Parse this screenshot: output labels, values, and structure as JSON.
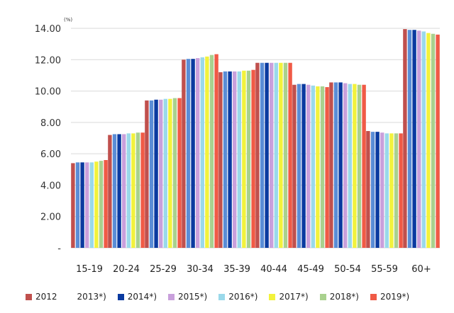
{
  "chart_data": {
    "type": "bar",
    "unit_label": "(%)",
    "categories": [
      "15-19",
      "20-24",
      "25-29",
      "30-34",
      "35-39",
      "40-44",
      "45-49",
      "50-54",
      "55-59",
      "60+"
    ],
    "y_ticks": [
      "-",
      "2.00",
      "4.00",
      "6.00",
      "8.00",
      "10.00",
      "12.00",
      "14.00"
    ],
    "ylim": [
      0,
      14
    ],
    "grid": true,
    "legend_position": "bottom",
    "series": [
      {
        "name": "2012",
        "color": "#c0504d",
        "values": [
          5.4,
          7.2,
          9.4,
          12.0,
          11.2,
          11.8,
          10.4,
          10.55,
          7.45,
          13.95
        ]
      },
      {
        "name": "2013*)",
        "color": "#5a8dd6",
        "values": [
          5.45,
          7.25,
          9.4,
          12.05,
          11.25,
          11.8,
          10.45,
          10.55,
          7.4,
          13.9
        ]
      },
      {
        "name": "2014*)",
        "color": "#0a3aa0",
        "values": [
          5.45,
          7.25,
          9.45,
          12.05,
          11.25,
          11.8,
          10.45,
          10.55,
          7.4,
          13.9
        ]
      },
      {
        "name": "2015*)",
        "color": "#c9a0dc",
        "values": [
          5.45,
          7.25,
          9.45,
          12.1,
          11.25,
          11.8,
          10.4,
          10.5,
          7.35,
          13.85
        ]
      },
      {
        "name": "2016*)",
        "color": "#9ad9ea",
        "values": [
          5.45,
          7.3,
          9.5,
          12.15,
          11.25,
          11.8,
          10.35,
          10.45,
          7.3,
          13.8
        ]
      },
      {
        "name": "2017*)",
        "color": "#f2f23c",
        "values": [
          5.5,
          7.3,
          9.5,
          12.2,
          11.3,
          11.8,
          10.3,
          10.45,
          7.3,
          13.7
        ]
      },
      {
        "name": "2018*)",
        "color": "#a9d18e",
        "values": [
          5.55,
          7.35,
          9.55,
          12.3,
          11.3,
          11.8,
          10.3,
          10.4,
          7.3,
          13.65
        ]
      },
      {
        "name": "2019*)",
        "color": "#f05a46",
        "values": [
          5.6,
          7.35,
          9.55,
          12.35,
          11.35,
          11.8,
          10.25,
          10.4,
          7.3,
          13.6
        ]
      }
    ]
  }
}
